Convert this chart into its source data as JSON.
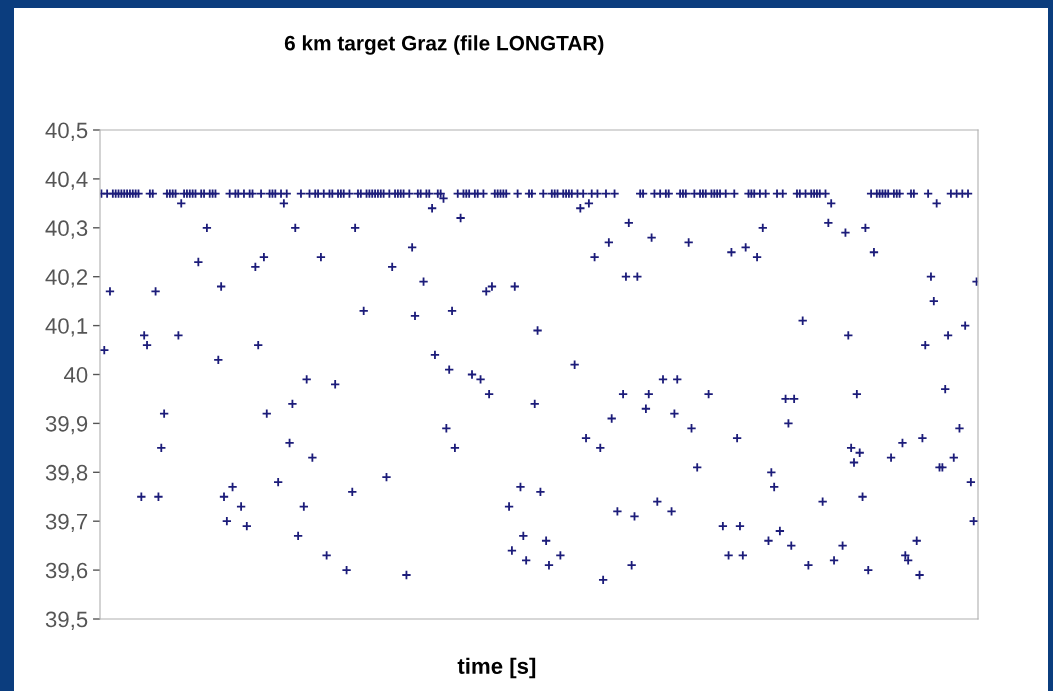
{
  "chart_data": {
    "type": "scatter",
    "title": "6 km target Graz (file LONGTAR)",
    "xlabel": "time [s]",
    "ylim": [
      39.5,
      40.5
    ],
    "yticks": [
      {
        "value": 39.5,
        "label": "39,5"
      },
      {
        "value": 39.6,
        "label": "39,6"
      },
      {
        "value": 39.7,
        "label": "39,7"
      },
      {
        "value": 39.8,
        "label": "39,8"
      },
      {
        "value": 39.9,
        "label": "39,9"
      },
      {
        "value": 40,
        "label": "40"
      },
      {
        "value": 40.1,
        "label": "40,1"
      },
      {
        "value": 40.2,
        "label": "40,2"
      },
      {
        "value": 40.3,
        "label": "40,3"
      },
      {
        "value": 40.4,
        "label": "40,4"
      },
      {
        "value": 40.5,
        "label": "40,5"
      }
    ],
    "tick_labels": "y",
    "marker": "cross",
    "color": "#1c1c7a",
    "categories": [
      null,
      null,
      null,
      null,
      null,
      null,
      null,
      null,
      null,
      null,
      null,
      null,
      null,
      null,
      null,
      null,
      null,
      null,
      null,
      null,
      null,
      null,
      null,
      null,
      null,
      null,
      null,
      null,
      null,
      null,
      null,
      null,
      null,
      null,
      null,
      null,
      null,
      null,
      null,
      null,
      null,
      null,
      null,
      null,
      null,
      null,
      null,
      null,
      null,
      null,
      null,
      null,
      null,
      null,
      null,
      null,
      null,
      null,
      null,
      null,
      null,
      null,
      null,
      null,
      null,
      null,
      null,
      null,
      null,
      null,
      null,
      null,
      null,
      null,
      null,
      null,
      null,
      null,
      null,
      null,
      null,
      null,
      null,
      null,
      null,
      null,
      null,
      null,
      null,
      null,
      null,
      null,
      null,
      null,
      null,
      null,
      null,
      null,
      null,
      null,
      null,
      null,
      null,
      null,
      null,
      null,
      null,
      null,
      null,
      null,
      null,
      null,
      null,
      null,
      null,
      null,
      null,
      null,
      null,
      null,
      null,
      null,
      null,
      null,
      null,
      null,
      null,
      null,
      null,
      null,
      null,
      null,
      null,
      null,
      null,
      null,
      null,
      null,
      null,
      null,
      null,
      null,
      null,
      null,
      null,
      null,
      null,
      null,
      null,
      null,
      null,
      null,
      null,
      null,
      null,
      null,
      null,
      null,
      null,
      null,
      null,
      null,
      null,
      null,
      null,
      null,
      null,
      null,
      null,
      null,
      null,
      null,
      null,
      null,
      null,
      null,
      null,
      null,
      null,
      null,
      null,
      null,
      null,
      null,
      null,
      null,
      null,
      null,
      null,
      null,
      null,
      null,
      null,
      null,
      null,
      null,
      null,
      null,
      null,
      null,
      null,
      null,
      null,
      null,
      null,
      null,
      null,
      null,
      null,
      null,
      null,
      null,
      null,
      null,
      null,
      null,
      null,
      null,
      null,
      null,
      null,
      null,
      null,
      null,
      null,
      null,
      null,
      null,
      null,
      null,
      null,
      null,
      null,
      null,
      null,
      null,
      null,
      null,
      null,
      null,
      null,
      null,
      null,
      null,
      null,
      null,
      null,
      null,
      null,
      null,
      null,
      null,
      null,
      null,
      null,
      null,
      null,
      null,
      null,
      null,
      null,
      null,
      null,
      null,
      null,
      null,
      null,
      null,
      null,
      null,
      null,
      null,
      null,
      null,
      null,
      null,
      null,
      null,
      null,
      null,
      null,
      null,
      null,
      null,
      null,
      null,
      null,
      null,
      null,
      null,
      null,
      null,
      null,
      null,
      null,
      null,
      null,
      null,
      null,
      null,
      null,
      null,
      null,
      null,
      null,
      null,
      null,
      null
    ],
    "values": [
      40.37,
      40.05,
      40.37,
      40.17,
      40.37,
      40.37,
      40.37,
      40.37,
      40.37,
      40.37,
      40.37,
      40.37,
      40.37,
      40.37,
      39.75,
      40.08,
      40.06,
      40.37,
      40.37,
      40.17,
      39.75,
      39.85,
      39.92,
      40.37,
      40.37,
      40.37,
      40.37,
      40.08,
      40.35,
      40.37,
      40.37,
      40.37,
      40.37,
      40.37,
      40.23,
      40.37,
      40.37,
      40.3,
      40.37,
      40.37,
      40.37,
      40.03,
      40.18,
      39.75,
      39.7,
      40.37,
      39.77,
      40.37,
      40.37,
      39.73,
      40.37,
      39.69,
      40.37,
      40.37,
      40.22,
      40.06,
      40.37,
      40.24,
      39.92,
      40.37,
      40.37,
      40.37,
      39.78,
      40.37,
      40.35,
      40.37,
      39.86,
      39.94,
      40.3,
      39.67,
      40.37,
      39.73,
      39.99,
      40.37,
      39.83,
      40.37,
      40.37,
      40.24,
      40.37,
      39.63,
      40.37,
      40.37,
      39.98,
      40.37,
      40.37,
      40.37,
      39.6,
      40.37,
      39.76,
      40.3,
      40.37,
      40.37,
      40.13,
      40.37,
      40.37,
      40.37,
      40.37,
      40.37,
      40.37,
      40.37,
      39.79,
      40.37,
      40.22,
      40.37,
      40.37,
      40.37,
      40.37,
      39.59,
      40.37,
      40.26,
      40.12,
      40.37,
      40.37,
      40.19,
      40.37,
      40.37,
      40.34,
      40.04,
      40.37,
      40.37,
      40.36,
      39.89,
      40.01,
      40.13,
      39.85,
      40.37,
      40.32,
      40.37,
      40.37,
      40.37,
      40.0,
      40.37,
      40.37,
      39.99,
      40.37,
      40.17,
      39.96,
      40.18,
      40.37,
      40.37,
      40.37,
      40.37,
      40.37,
      39.73,
      39.64,
      40.18,
      40.37,
      39.77,
      39.67,
      39.62,
      40.37,
      40.37,
      39.94,
      40.09,
      39.76,
      40.37,
      39.66,
      39.61,
      40.37,
      40.37,
      40.37,
      39.63,
      40.37,
      40.37,
      40.37,
      40.37,
      40.02,
      40.37,
      40.34,
      40.37,
      39.87,
      40.35,
      40.37,
      40.24,
      40.37,
      39.85,
      39.58,
      40.37,
      40.27,
      39.91,
      40.37,
      39.72,
      null,
      39.96,
      40.2,
      40.31,
      39.61,
      39.71,
      40.2,
      40.37,
      40.37,
      39.93,
      39.96,
      40.28,
      40.37,
      39.74,
      40.37,
      39.99,
      40.37,
      40.37,
      39.72,
      39.92,
      39.99,
      40.37,
      40.37,
      40.37,
      40.27,
      39.89,
      40.37,
      39.81,
      40.37,
      40.37,
      40.37,
      39.96,
      40.37,
      40.37,
      40.37,
      40.37,
      39.69,
      40.37,
      39.63,
      40.25,
      40.37,
      39.87,
      39.69,
      39.63,
      40.26,
      40.37,
      40.37,
      40.37,
      40.24,
      40.37,
      40.3,
      40.37,
      39.66,
      39.8,
      39.77,
      40.37,
      39.68,
      40.37,
      39.95,
      39.9,
      39.65,
      39.95,
      40.37,
      40.37,
      40.11,
      40.37,
      39.61,
      40.37,
      40.37,
      40.37,
      40.37,
      39.74,
      40.37,
      40.31,
      40.35,
      39.62,
      null,
      null,
      39.65,
      40.29,
      40.08,
      39.85,
      39.82,
      39.96,
      39.84,
      39.75,
      40.3,
      39.6,
      40.37,
      40.25,
      40.37,
      40.37,
      40.37,
      40.37,
      40.37,
      39.83,
      40.37,
      40.37,
      40.37,
      39.86,
      39.63,
      39.62,
      40.37,
      40.37,
      39.66,
      39.59,
      39.87,
      40.06,
      40.37,
      40.2,
      40.15,
      40.35,
      39.81,
      39.81,
      39.97,
      40.08,
      40.37,
      39.83,
      40.37,
      39.89,
      40.37,
      40.1,
      40.37,
      39.78,
      39.7,
      40.19
    ]
  }
}
